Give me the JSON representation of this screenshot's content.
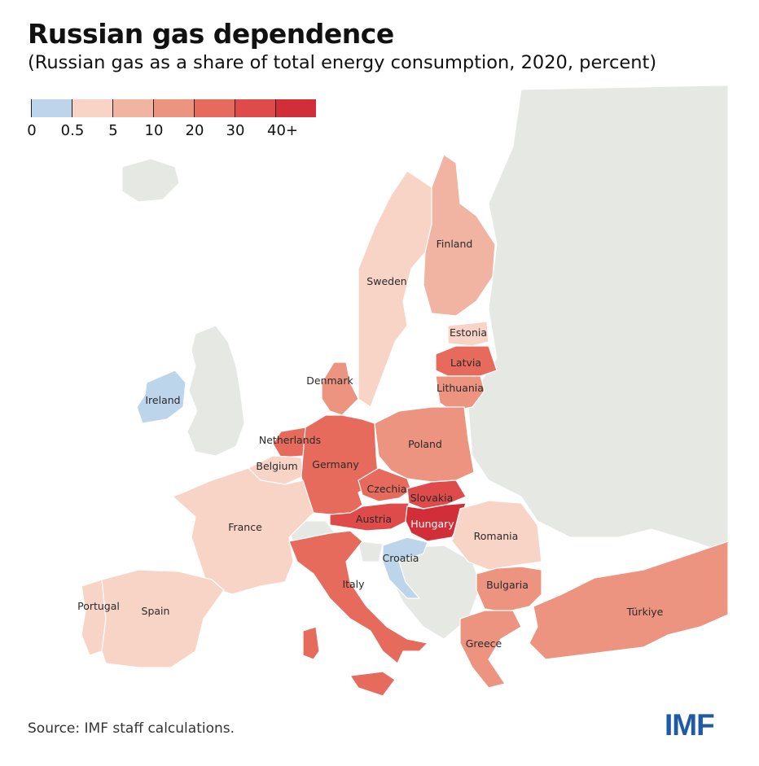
{
  "header": {
    "title": "Russian gas dependence",
    "subtitle": "(Russian gas as a share of total energy consumption, 2020, percent)"
  },
  "legend": {
    "bins": [
      {
        "label": "0",
        "color": "#bdd5ea"
      },
      {
        "label": "0.5",
        "color": "#f8d4c6"
      },
      {
        "label": "5",
        "color": "#f2b4a2"
      },
      {
        "label": "10",
        "color": "#ec9480"
      },
      {
        "label": "20",
        "color": "#e76b5c"
      },
      {
        "label": "30",
        "color": "#df4b4b"
      },
      {
        "label": "40+",
        "color": ""
      }
    ],
    "top_color": "#d12e3a"
  },
  "colors": {
    "non_data_land": "#e6e8e4",
    "sea": "#ffffff",
    "border": "#ffffff"
  },
  "countries": [
    {
      "id": "finland",
      "label": "Finland",
      "bin": "5-10",
      "color": "#f2b4a2"
    },
    {
      "id": "sweden",
      "label": "Sweden",
      "bin": "0.5-5",
      "color": "#f8d4c6"
    },
    {
      "id": "estonia",
      "label": "Estonia",
      "bin": "0.5-5",
      "color": "#f8d4c6"
    },
    {
      "id": "latvia",
      "label": "Latvia",
      "bin": "20-30",
      "color": "#e76b5c"
    },
    {
      "id": "lithuania",
      "label": "Lithuania",
      "bin": "10-20",
      "color": "#ec9480"
    },
    {
      "id": "denmark",
      "label": "Denmark",
      "bin": "10-20",
      "color": "#ec9480"
    },
    {
      "id": "ireland",
      "label": "Ireland",
      "bin": "0",
      "color": "#bdd5ea"
    },
    {
      "id": "netherlands",
      "label": "Netherlands",
      "bin": "20-30",
      "color": "#e76b5c"
    },
    {
      "id": "belgium",
      "label": "Belgium",
      "bin": "0.5-5",
      "color": "#f8d4c6"
    },
    {
      "id": "germany",
      "label": "Germany",
      "bin": "20-30",
      "color": "#e76b5c"
    },
    {
      "id": "poland",
      "label": "Poland",
      "bin": "10-20",
      "color": "#ec9480"
    },
    {
      "id": "czechia",
      "label": "Czechia",
      "bin": "20-30",
      "color": "#e76b5c"
    },
    {
      "id": "slovakia",
      "label": "Slovakia",
      "bin": "30-40",
      "color": "#df4b4b"
    },
    {
      "id": "austria",
      "label": "Austria",
      "bin": "30-40",
      "color": "#df4b4b"
    },
    {
      "id": "hungary",
      "label": "Hungary",
      "bin": "40+",
      "color": "#d12e3a"
    },
    {
      "id": "france",
      "label": "France",
      "bin": "0.5-5",
      "color": "#f8d4c6"
    },
    {
      "id": "croatia",
      "label": "Croatia",
      "bin": "0",
      "color": "#bdd5ea"
    },
    {
      "id": "romania",
      "label": "Romania",
      "bin": "0.5-5",
      "color": "#f8d4c6"
    },
    {
      "id": "italy",
      "label": "Italy",
      "bin": "20-30",
      "color": "#e76b5c"
    },
    {
      "id": "bulgaria",
      "label": "Bulgaria",
      "bin": "10-20",
      "color": "#ec9480"
    },
    {
      "id": "portugal",
      "label": "Portugal",
      "bin": "0.5-5",
      "color": "#f8d4c6"
    },
    {
      "id": "spain",
      "label": "Spain",
      "bin": "0.5-5",
      "color": "#f8d4c6"
    },
    {
      "id": "greece",
      "label": "Greece",
      "bin": "10-20",
      "color": "#ec9480"
    },
    {
      "id": "turkiye",
      "label": "Türkiye",
      "bin": "10-20",
      "color": "#ec9480"
    }
  ],
  "footer": {
    "source": "Source: IMF staff calculations.",
    "logo": "IMF"
  }
}
